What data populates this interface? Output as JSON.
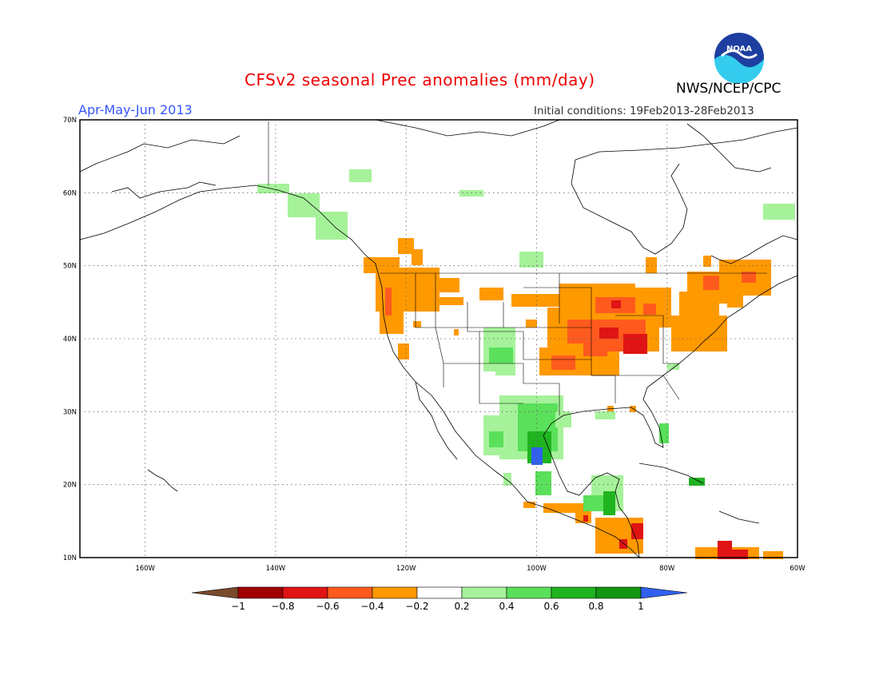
{
  "title": "CFSv2 seasonal Prec anomalies (mm/day)",
  "season": "Apr-May-Jun 2013",
  "initial_conditions": "Initial conditions: 19Feb2013-28Feb2013",
  "organization": "NWS/NCEP/CPC",
  "logo_text": "NOAA",
  "map": {
    "lon_range": [
      -170,
      -60
    ],
    "lat_range": [
      10,
      70
    ],
    "lat_ticks": [
      "70N",
      "60N",
      "50N",
      "40N",
      "30N",
      "20N",
      "10N"
    ],
    "lat_values": [
      70,
      60,
      50,
      40,
      30,
      20,
      10
    ],
    "lon_ticks": [
      "160W",
      "140W",
      "120W",
      "100W",
      "80W",
      "60W"
    ],
    "lon_values": [
      -160,
      -140,
      -120,
      -100,
      -80,
      -60
    ],
    "grid": "dotted"
  },
  "colorbar": {
    "labels": [
      "−1",
      "−0.8",
      "−0.6",
      "−0.4",
      "−0.2",
      "0.2",
      "0.4",
      "0.6",
      "0.8",
      "1"
    ],
    "colors": [
      "#7a4a2c",
      "#a00000",
      "#e01414",
      "#ff5a1e",
      "#ff9900",
      "#ffffff",
      "#a6f29a",
      "#5ae05a",
      "#20b420",
      "#129612",
      "#3060ee"
    ]
  }
}
